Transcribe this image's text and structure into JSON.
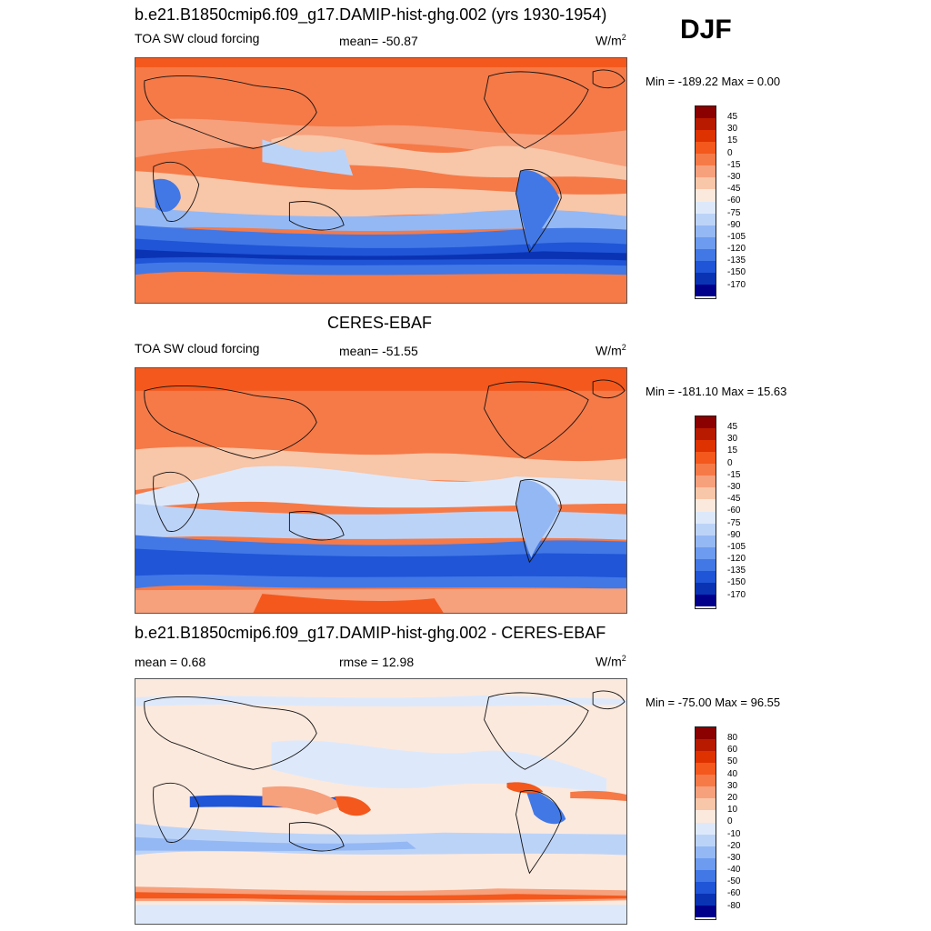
{
  "season": "DJF",
  "panels": [
    {
      "title": "b.e21.B1850cmip6.f09_g17.DAMIP-hist-ghg.002 (yrs 1930-1954)",
      "left_label": "TOA SW cloud forcing",
      "mid_label": "mean= -50.87",
      "units": "W/m",
      "units_sup": "2",
      "minmax": "Min = -189.22 Max =    0.00",
      "colorbar": {
        "labels": [
          "45",
          "30",
          "15",
          "0",
          "-15",
          "-30",
          "-45",
          "-60",
          "-75",
          "-90",
          "-105",
          "-120",
          "-135",
          "-150",
          "-170"
        ],
        "colors": [
          "#8b0000",
          "#b81a00",
          "#de3200",
          "#f4581c",
          "#f57a48",
          "#f6a07c",
          "#f8c6a8",
          "#fce9dd",
          "#dde9fb",
          "#bcd3f8",
          "#94b8f4",
          "#6c9bef",
          "#4278e6",
          "#1f55d6",
          "#0a33b4",
          "#00008b"
        ]
      }
    },
    {
      "title": "CERES-EBAF",
      "left_label": "TOA SW cloud forcing",
      "mid_label": "mean= -51.55",
      "units": "W/m",
      "units_sup": "2",
      "minmax": "Min = -181.10 Max =  15.63",
      "colorbar": {
        "labels": [
          "45",
          "30",
          "15",
          "0",
          "-15",
          "-30",
          "-45",
          "-60",
          "-75",
          "-90",
          "-105",
          "-120",
          "-135",
          "-150",
          "-170"
        ],
        "colors": [
          "#8b0000",
          "#b81a00",
          "#de3200",
          "#f4581c",
          "#f57a48",
          "#f6a07c",
          "#f8c6a8",
          "#fce9dd",
          "#dde9fb",
          "#bcd3f8",
          "#94b8f4",
          "#6c9bef",
          "#4278e6",
          "#1f55d6",
          "#0a33b4",
          "#00008b"
        ]
      }
    },
    {
      "title": "b.e21.B1850cmip6.f09_g17.DAMIP-hist-ghg.002 - CERES-EBAF",
      "left_label": "mean =   0.68",
      "mid_label": "rmse =  12.98",
      "units": "W/m",
      "units_sup": "2",
      "minmax": "Min = -75.00 Max =  96.55",
      "colorbar": {
        "labels": [
          "80",
          "60",
          "50",
          "40",
          "30",
          "20",
          "10",
          "0",
          "-10",
          "-20",
          "-30",
          "-40",
          "-50",
          "-60",
          "-80"
        ],
        "colors": [
          "#8b0000",
          "#b81a00",
          "#de3200",
          "#f4581c",
          "#f57a48",
          "#f6a07c",
          "#f8c6a8",
          "#fce9dd",
          "#dde9fb",
          "#bcd3f8",
          "#94b8f4",
          "#6c9bef",
          "#4278e6",
          "#1f55d6",
          "#0a33b4",
          "#00008b"
        ]
      }
    }
  ]
}
